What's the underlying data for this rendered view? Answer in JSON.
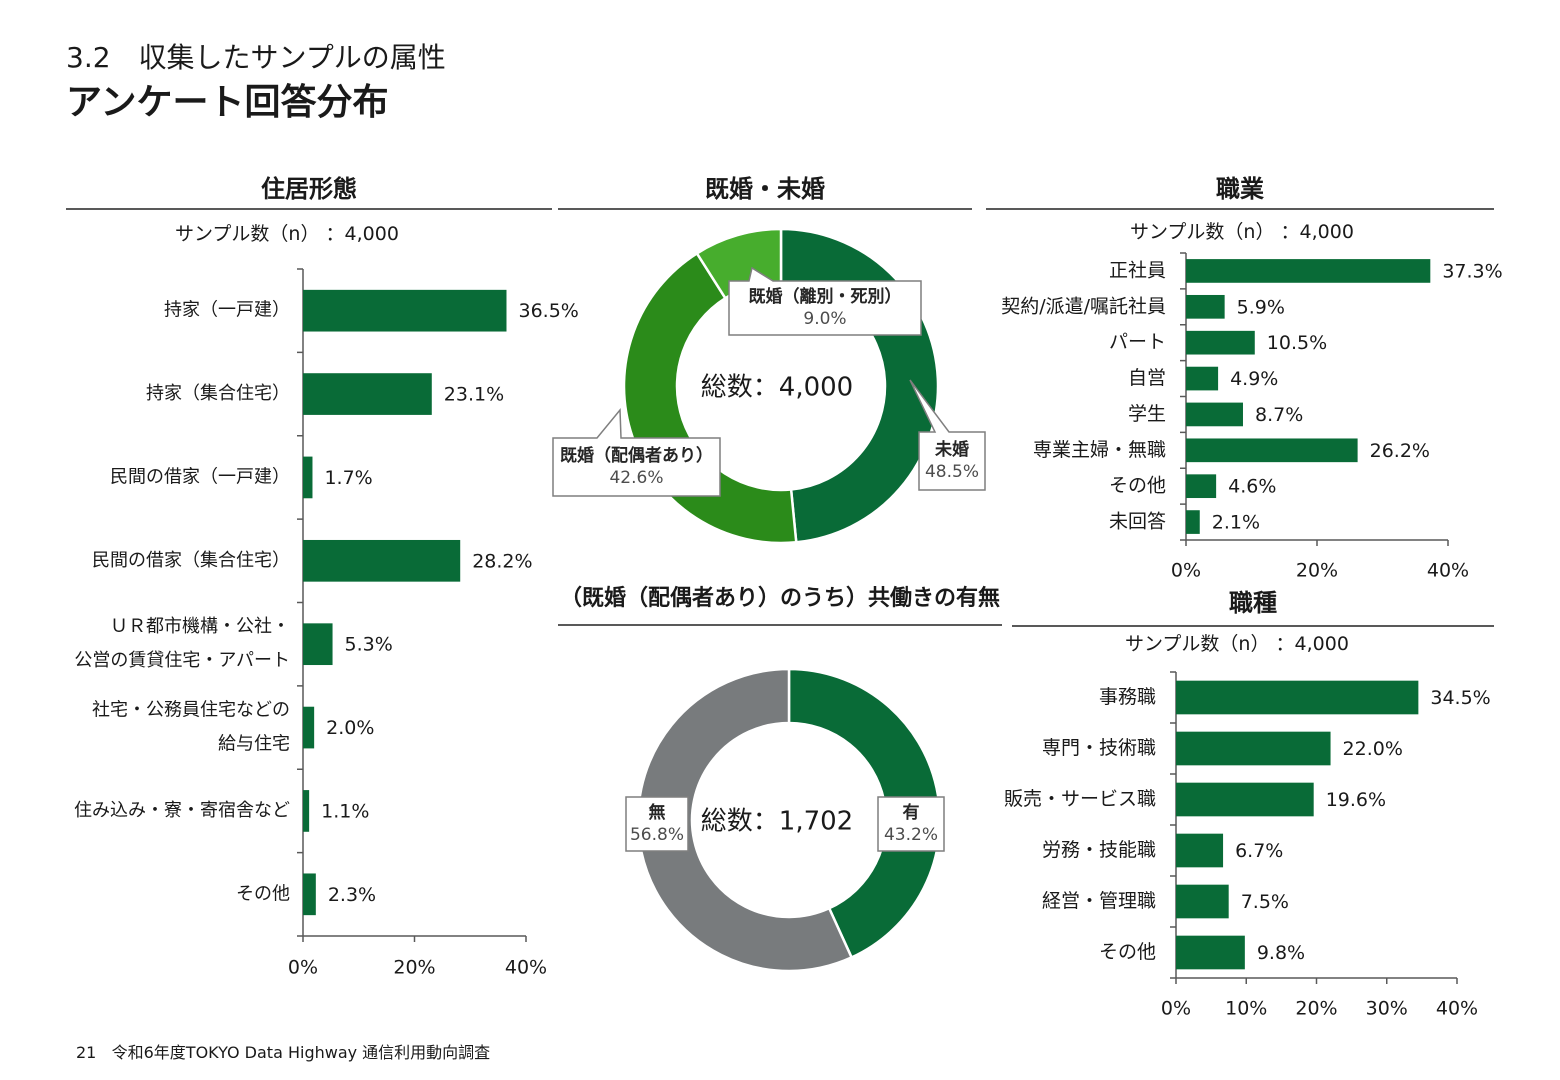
{
  "header": {
    "subtitle": "3.2　収集したサンプルの属性",
    "title": "アンケート回答分布"
  },
  "colors": {
    "primary": "#096b37",
    "mid": "#2b8b1a",
    "light": "#47ad2d",
    "gray": "#787b7d",
    "axis": "#595959"
  },
  "sections": {
    "housing": {
      "title": "住居形態",
      "sample": "サンプル数（n） ：4,000"
    },
    "marital": {
      "title": "既婚・未婚"
    },
    "job": {
      "title": "職業",
      "sample": "サンプル数（n） ：4,000"
    },
    "dual": {
      "title": "（既婚（配偶者あり）のうち）共働きの有無"
    },
    "jobtype": {
      "title": "職種",
      "sample": "サンプル数（n） ：4,000"
    }
  },
  "footer": {
    "page": "21",
    "text": "令和6年度TOKYO Data Highway 通信利用動向調査"
  },
  "chart_data": [
    {
      "id": "housing",
      "type": "bar",
      "orientation": "horizontal",
      "categories": [
        "持家（一戸建）",
        "持家（集合住宅）",
        "民間の借家（一戸建）",
        "民間の借家（集合住宅）",
        "ＵＲ都市機構・公社・\n公営の賃貸住宅・アパート",
        "社宅・公務員住宅などの\n給与住宅",
        "住み込み・寮・寄宿舎など",
        "その他"
      ],
      "values": [
        36.5,
        23.1,
        1.7,
        28.2,
        5.3,
        2.0,
        1.1,
        2.3
      ],
      "labels": [
        "36.5%",
        "23.1%",
        "1.7%",
        "28.2%",
        "5.3%",
        "2.0%",
        "1.1%",
        "2.3%"
      ],
      "xlim": [
        0,
        40
      ],
      "ticks": [
        "0%",
        "20%",
        "40%"
      ],
      "grid": false
    },
    {
      "id": "marital",
      "type": "pie",
      "donut": true,
      "center_label": "総数：4,000",
      "slices": [
        {
          "name": "未婚",
          "value": 48.5,
          "label": "48.5%",
          "color": "#096b37"
        },
        {
          "name": "既婚（配偶者あり）",
          "value": 42.6,
          "label": "42.6%",
          "color": "#2b8b1a"
        },
        {
          "name": "既婚（離別・死別）",
          "value": 9.0,
          "label": "9.0%",
          "color": "#47ad2d"
        }
      ]
    },
    {
      "id": "job",
      "type": "bar",
      "orientation": "horizontal",
      "categories": [
        "正社員",
        "契約/派遣/嘱託社員",
        "パート",
        "自営",
        "学生",
        "専業主婦・無職",
        "その他",
        "未回答"
      ],
      "values": [
        37.3,
        5.9,
        10.5,
        4.9,
        8.7,
        26.2,
        4.6,
        2.1
      ],
      "labels": [
        "37.3%",
        "5.9%",
        "10.5%",
        "4.9%",
        "8.7%",
        "26.2%",
        "4.6%",
        "2.1%"
      ],
      "xlim": [
        0,
        40
      ],
      "ticks": [
        "0%",
        "20%",
        "40%"
      ],
      "grid": false
    },
    {
      "id": "dual",
      "type": "pie",
      "donut": true,
      "center_label": "総数：1,702",
      "slices": [
        {
          "name": "有",
          "value": 43.2,
          "label": "43.2%",
          "color": "#096b37"
        },
        {
          "name": "無",
          "value": 56.8,
          "label": "56.8%",
          "color": "#787b7d"
        }
      ]
    },
    {
      "id": "jobtype",
      "type": "bar",
      "orientation": "horizontal",
      "categories": [
        "事務職",
        "専門・技術職",
        "販売・サービス職",
        "労務・技能職",
        "経営・管理職",
        "その他"
      ],
      "values": [
        34.5,
        22.0,
        19.6,
        6.7,
        7.5,
        9.8
      ],
      "labels": [
        "34.5%",
        "22.0%",
        "19.6%",
        "6.7%",
        "7.5%",
        "9.8%"
      ],
      "xlim": [
        0,
        40
      ],
      "ticks": [
        "0%",
        "10%",
        "20%",
        "30%",
        "40%"
      ],
      "grid": false
    }
  ]
}
